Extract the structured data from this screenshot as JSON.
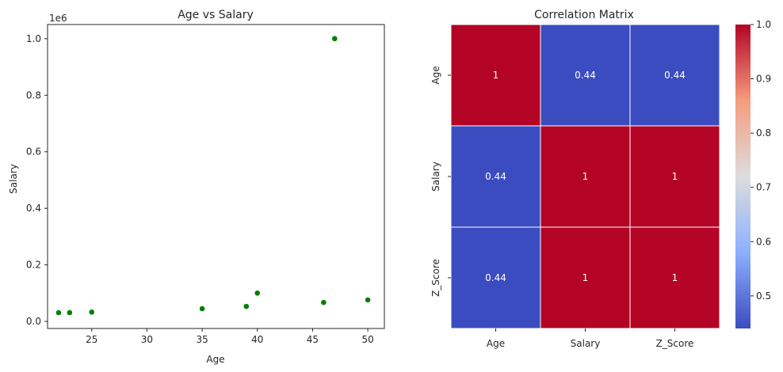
{
  "chart_data": [
    {
      "type": "scatter",
      "title": "Age vs Salary",
      "xlabel": "Age",
      "ylabel": "Salary",
      "y_scale_label": "1e6",
      "xlim": [
        21,
        51.5
      ],
      "ylim": [
        -0.025,
        1.05
      ],
      "xticks": [
        25,
        30,
        35,
        40,
        45,
        50
      ],
      "xtick_labels": [
        "25",
        "30",
        "35",
        "40",
        "45",
        "50"
      ],
      "yticks": [
        0.0,
        0.2,
        0.4,
        0.6,
        0.8,
        1.0
      ],
      "ytick_labels": [
        "0.0",
        "0.2",
        "0.4",
        "0.6",
        "0.8",
        "1.0"
      ],
      "marker_color": "#008000",
      "points": [
        {
          "x": 22,
          "y": 0.031
        },
        {
          "x": 23,
          "y": 0.031
        },
        {
          "x": 25,
          "y": 0.033
        },
        {
          "x": 35,
          "y": 0.045
        },
        {
          "x": 39,
          "y": 0.053
        },
        {
          "x": 40,
          "y": 0.1
        },
        {
          "x": 46,
          "y": 0.067
        },
        {
          "x": 47,
          "y": 1.0
        },
        {
          "x": 50,
          "y": 0.076
        }
      ],
      "grid": false
    },
    {
      "type": "heatmap",
      "title": "Correlation Matrix",
      "rows": [
        "Age",
        "Salary",
        "Z_Score"
      ],
      "columns": [
        "Age",
        "Salary",
        "Z_Score"
      ],
      "values": [
        [
          1,
          0.44,
          0.44
        ],
        [
          0.44,
          1,
          1
        ],
        [
          0.44,
          1,
          1
        ]
      ],
      "cell_labels": [
        [
          "1",
          "0.44",
          "0.44"
        ],
        [
          "0.44",
          "1",
          "1"
        ],
        [
          "0.44",
          "1",
          "1"
        ]
      ],
      "colormap": "coolwarm",
      "low_color": "#3b4cc0",
      "high_color": "#b40426",
      "colorbar_range": [
        0.44,
        1.0
      ],
      "colorbar_ticks": [
        0.5,
        0.6,
        0.7,
        0.8,
        0.9,
        1.0
      ],
      "colorbar_tick_labels": [
        "0.5",
        "0.6",
        "0.7",
        "0.8",
        "0.9",
        "1.0"
      ],
      "cell_border_color": "#ffffff"
    }
  ]
}
